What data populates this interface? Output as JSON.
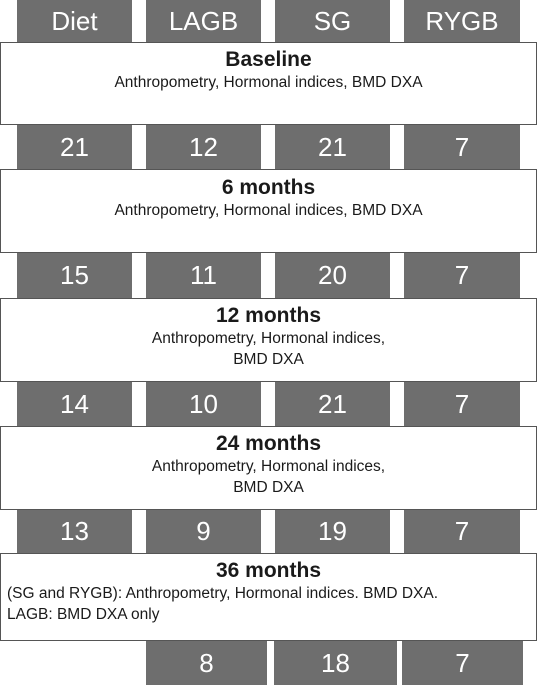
{
  "groups": [
    "Diet",
    "LAGB",
    "SG",
    "RYGB"
  ],
  "stages": [
    {
      "title": "Baseline",
      "lines": [
        "Anthropometry, Hormonal indices, BMD DXA"
      ]
    },
    {
      "title": "6 months",
      "lines": [
        "Anthropometry, Hormonal indices, BMD DXA"
      ]
    },
    {
      "title": "12 months",
      "lines": [
        "Anthropometry,  Hormonal indices,",
        "BMD DXA"
      ]
    },
    {
      "title": "24 months",
      "lines": [
        "Anthropometry, Hormonal indices,",
        "BMD DXA"
      ]
    },
    {
      "title": "36 months",
      "lines": [
        "(SG and RYGB): Anthropometry, Hormonal indices. BMD DXA.",
        "LAGB: BMD DXA only"
      ]
    }
  ],
  "counts": [
    {
      "Diet": "21",
      "LAGB": "12",
      "SG": "21",
      "RYGB": "7"
    },
    {
      "Diet": "15",
      "LAGB": "11",
      "SG": "20",
      "RYGB": "7"
    },
    {
      "Diet": "14",
      "LAGB": "10",
      "SG": "21",
      "RYGB": "7"
    },
    {
      "Diet": "13",
      "LAGB": "9",
      "SG": "19",
      "RYGB": "7"
    },
    {
      "LAGB": "8",
      "SG": "18",
      "RYGB": "7"
    }
  ]
}
